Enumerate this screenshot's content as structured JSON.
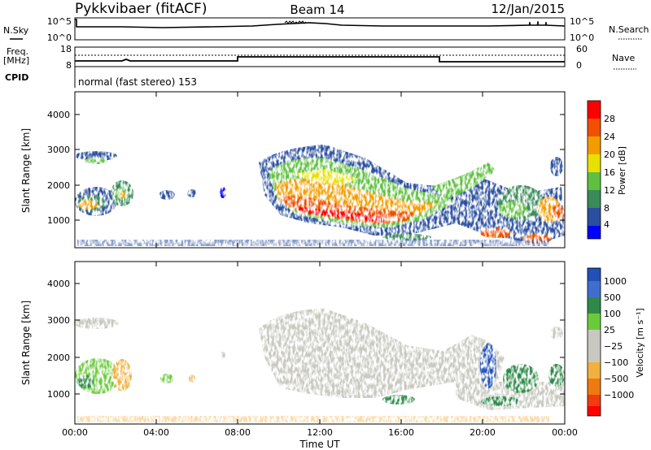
{
  "header": {
    "station": "Pykkvibaer (fitACF)",
    "beam": "Beam 14",
    "date": "12/Jan/2015"
  },
  "strips": {
    "nsky_label": "N.Sky",
    "nsky_ticks": [
      "10^5",
      "10^0"
    ],
    "nsearch_label": "N.Search",
    "nsearch_ticks": [
      "10^5",
      "10^0"
    ],
    "freq_label_1": "Freq.",
    "freq_label_2": "[MHz]",
    "freq_ticks": [
      "18",
      "8"
    ],
    "nave_label": "Nave",
    "nave_ticks": [
      "60",
      "0"
    ],
    "cpid_label": "CPID",
    "cpid_text": "normal (fast stereo) 153"
  },
  "colors": {
    "power_scale": [
      "#0000ff",
      "#2a4fa0",
      "#3a8a5a",
      "#5fc040",
      "#e8e000",
      "#f39c00",
      "#f05000",
      "#ff0000"
    ],
    "velocity_scale": [
      "#2050b8",
      "#3f6ecf",
      "#2f8a4a",
      "#6acb3a",
      "#c8c8c0",
      "#f2b040",
      "#f07a10",
      "#f03c10",
      "#ff0000"
    ],
    "ground_scatter": "#c8c8c0"
  },
  "chart_data": [
    {
      "type": "heatmap",
      "title": "Power",
      "xlabel": "Time UT",
      "ylabel": "Slant Range [km]",
      "xlim_hours": [
        0,
        24
      ],
      "ylim": [
        180,
        4600
      ],
      "xticks": [
        "00:00",
        "04:00",
        "08:00",
        "12:00",
        "16:00",
        "20:00",
        "00:00"
      ],
      "yticks": [
        1000,
        2000,
        3000,
        4000
      ],
      "colorbar": {
        "label": "Power [dB]",
        "ticks": [
          "28",
          "24",
          "20",
          "16",
          "12",
          "8",
          "4"
        ],
        "range": [
          0,
          30
        ]
      },
      "scatter_regions": [
        {
          "t": [
            0,
            3.5
          ],
          "range": [
            1200,
            2200
          ],
          "level": 13
        },
        {
          "t": [
            0,
            2.2
          ],
          "range": [
            2550,
            2950
          ],
          "level": 8
        },
        {
          "t": [
            9.0,
            18.0
          ],
          "range": [
            800,
            2600
          ],
          "level": 22
        },
        {
          "t": [
            9.0,
            13.5
          ],
          "range": [
            2600,
            3150
          ],
          "level": 10
        },
        {
          "t": [
            13.5,
            18.5
          ],
          "range": [
            1200,
            2800
          ],
          "level": 14
        },
        {
          "t": [
            19.5,
            24.0
          ],
          "range": [
            500,
            2300
          ],
          "level": 15
        }
      ]
    },
    {
      "type": "heatmap",
      "title": "Velocity",
      "xlabel": "Time UT",
      "ylabel": "Slant Range [km]",
      "xlim_hours": [
        0,
        24
      ],
      "ylim": [
        180,
        4600
      ],
      "xticks": [
        "00:00",
        "04:00",
        "08:00",
        "12:00",
        "16:00",
        "20:00",
        "00:00"
      ],
      "yticks": [
        1000,
        2000,
        3000,
        4000
      ],
      "colorbar": {
        "label": "Velocity [m s⁻¹]",
        "ticks": [
          "1000",
          "500",
          "100",
          "25",
          "−25",
          "−100",
          "−500",
          "−1000"
        ],
        "range": [
          -1000,
          1000
        ]
      },
      "scatter_regions": [
        {
          "t": [
            0,
            3.5
          ],
          "range": [
            1200,
            2200
          ],
          "velocity": -60
        },
        {
          "t": [
            0,
            2.2
          ],
          "range": [
            2550,
            2950
          ],
          "velocity": 0
        },
        {
          "t": [
            9.0,
            19.5
          ],
          "range": [
            900,
            3150
          ],
          "velocity": 0
        },
        {
          "t": [
            19.5,
            24.0
          ],
          "range": [
            500,
            2300
          ],
          "velocity": 250
        }
      ]
    }
  ]
}
